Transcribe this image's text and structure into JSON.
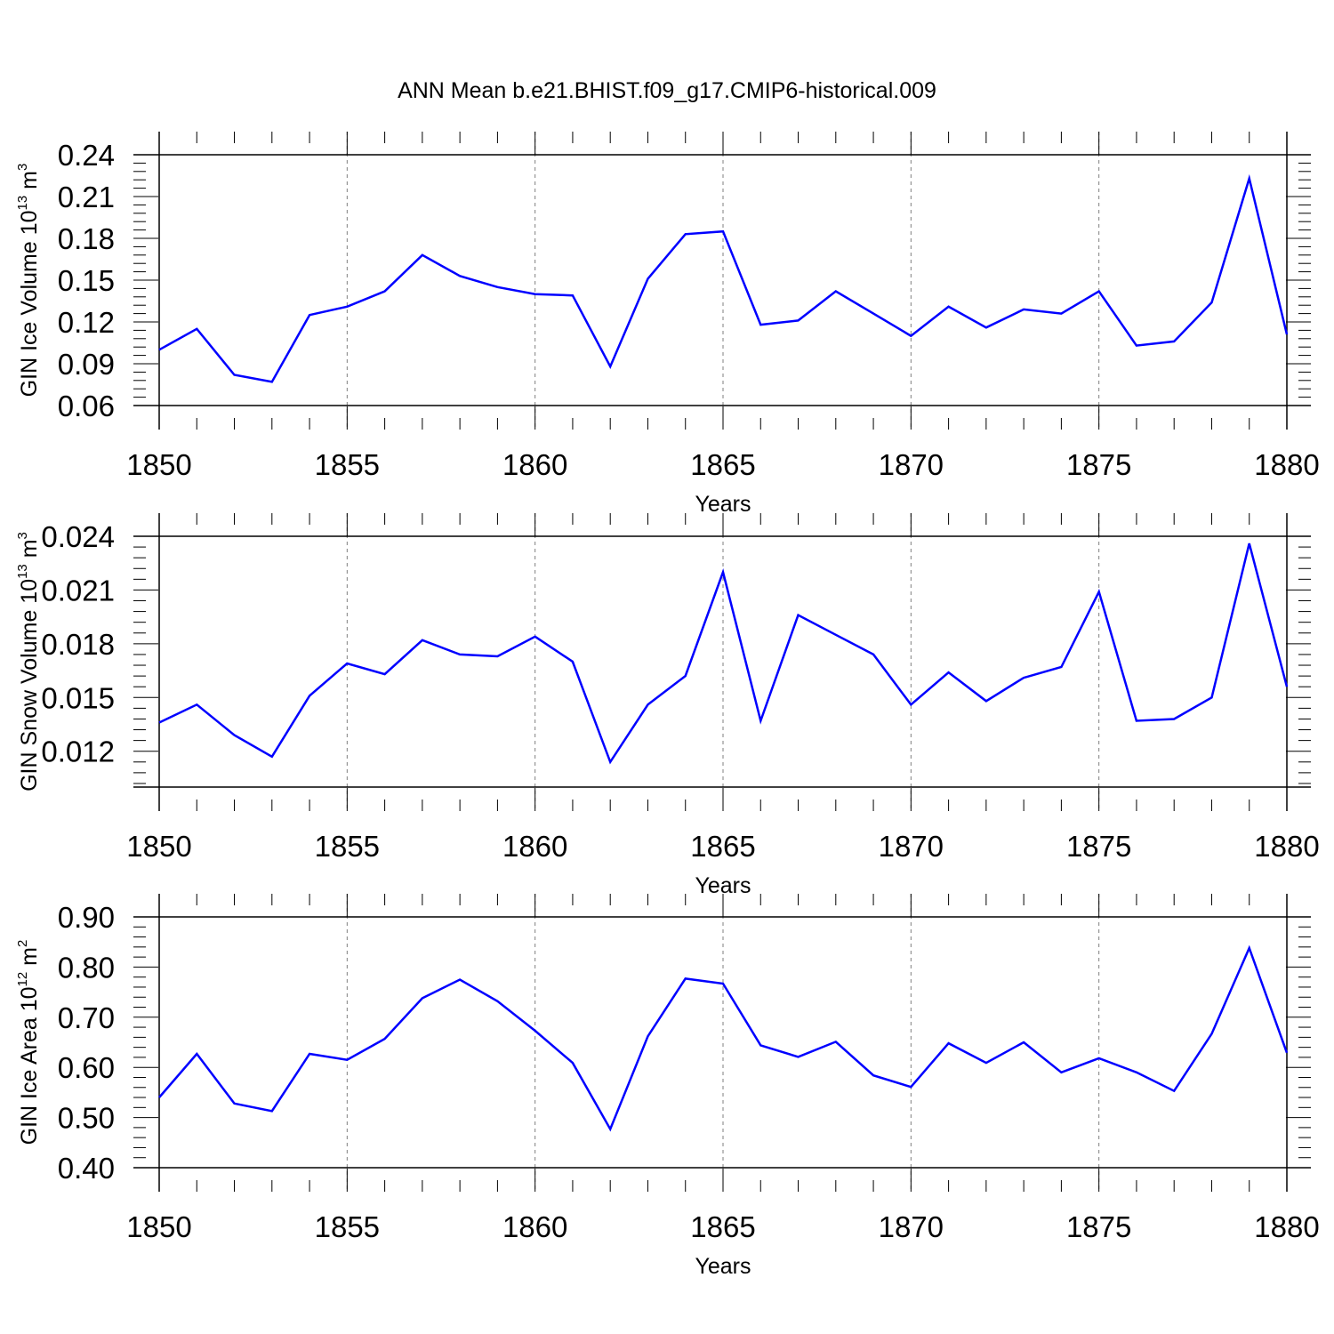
{
  "title": "ANN Mean b.e21.BHIST.f09_g17.CMIP6-historical.009",
  "chart_data": [
    {
      "type": "line",
      "ylabel": {
        "base": "GIN Ice Volume 10",
        "exp": "13",
        "unit": " m",
        "unit_exp": "3"
      },
      "xlabel": "Years",
      "xlim": [
        1850,
        1880
      ],
      "ylim": [
        0.06,
        0.24
      ],
      "xticks": [
        1850,
        1855,
        1860,
        1865,
        1870,
        1875,
        1880
      ],
      "xtick_labels": [
        "1850",
        "1855",
        "1860",
        "1865",
        "1870",
        "1875",
        "1880"
      ],
      "yticks": [
        0.06,
        0.09,
        0.12,
        0.15,
        0.18,
        0.21,
        0.24
      ],
      "ytick_labels": [
        "0.06",
        "0.09",
        "0.12",
        "0.15",
        "0.18",
        "0.21",
        "0.24"
      ],
      "line_color": "#0000ff",
      "x": [
        1850,
        1851,
        1852,
        1853,
        1854,
        1855,
        1856,
        1857,
        1858,
        1859,
        1860,
        1861,
        1862,
        1863,
        1864,
        1865,
        1866,
        1867,
        1868,
        1869,
        1870,
        1871,
        1872,
        1873,
        1874,
        1875,
        1876,
        1877,
        1878,
        1879,
        1880
      ],
      "values": [
        0.1,
        0.115,
        0.082,
        0.077,
        0.125,
        0.131,
        0.142,
        0.168,
        0.153,
        0.145,
        0.14,
        0.139,
        0.088,
        0.151,
        0.183,
        0.185,
        0.118,
        0.121,
        0.142,
        0.126,
        0.11,
        0.131,
        0.116,
        0.129,
        0.126,
        0.142,
        0.103,
        0.106,
        0.134,
        0.223,
        0.111
      ]
    },
    {
      "type": "line",
      "ylabel": {
        "base": "GIN Snow Volume 10",
        "exp": "13",
        "unit": " m",
        "unit_exp": "3"
      },
      "xlabel": "Years",
      "xlim": [
        1850,
        1880
      ],
      "ylim": [
        0.01,
        0.024
      ],
      "xticks": [
        1850,
        1855,
        1860,
        1865,
        1870,
        1875,
        1880
      ],
      "xtick_labels": [
        "1850",
        "1855",
        "1860",
        "1865",
        "1870",
        "1875",
        "1880"
      ],
      "yticks": [
        0.012,
        0.015,
        0.018,
        0.021,
        0.024
      ],
      "ytick_labels": [
        "0.012",
        "0.015",
        "0.018",
        "0.021",
        "0.024"
      ],
      "line_color": "#0000ff",
      "x": [
        1850,
        1851,
        1852,
        1853,
        1854,
        1855,
        1856,
        1857,
        1858,
        1859,
        1860,
        1861,
        1862,
        1863,
        1864,
        1865,
        1866,
        1867,
        1868,
        1869,
        1870,
        1871,
        1872,
        1873,
        1874,
        1875,
        1876,
        1877,
        1878,
        1879,
        1880
      ],
      "values": [
        0.0136,
        0.0146,
        0.0129,
        0.0117,
        0.0151,
        0.0169,
        0.0163,
        0.0182,
        0.0174,
        0.0173,
        0.0184,
        0.017,
        0.0114,
        0.0146,
        0.0162,
        0.022,
        0.0137,
        0.0196,
        0.0185,
        0.0174,
        0.0146,
        0.0164,
        0.0148,
        0.0161,
        0.0167,
        0.0209,
        0.0137,
        0.0138,
        0.015,
        0.0236,
        0.0156
      ]
    },
    {
      "type": "line",
      "ylabel": {
        "base": "GIN Ice Area 10",
        "exp": "12",
        "unit": " m",
        "unit_exp": "2"
      },
      "xlabel": "Years",
      "xlim": [
        1850,
        1880
      ],
      "ylim": [
        0.4,
        0.9
      ],
      "xticks": [
        1850,
        1855,
        1860,
        1865,
        1870,
        1875,
        1880
      ],
      "xtick_labels": [
        "1850",
        "1855",
        "1860",
        "1865",
        "1870",
        "1875",
        "1880"
      ],
      "yticks": [
        0.4,
        0.5,
        0.6,
        0.7,
        0.8,
        0.9
      ],
      "ytick_labels": [
        "0.40",
        "0.50",
        "0.60",
        "0.70",
        "0.80",
        "0.90"
      ],
      "line_color": "#0000ff",
      "x": [
        1850,
        1851,
        1852,
        1853,
        1854,
        1855,
        1856,
        1857,
        1858,
        1859,
        1860,
        1861,
        1862,
        1863,
        1864,
        1865,
        1866,
        1867,
        1868,
        1869,
        1870,
        1871,
        1872,
        1873,
        1874,
        1875,
        1876,
        1877,
        1878,
        1879,
        1880
      ],
      "values": [
        0.54,
        0.627,
        0.528,
        0.513,
        0.627,
        0.615,
        0.657,
        0.738,
        0.775,
        0.732,
        0.673,
        0.609,
        0.477,
        0.662,
        0.777,
        0.767,
        0.644,
        0.621,
        0.651,
        0.584,
        0.561,
        0.648,
        0.609,
        0.65,
        0.59,
        0.618,
        0.59,
        0.553,
        0.667,
        0.838,
        0.629
      ]
    }
  ]
}
